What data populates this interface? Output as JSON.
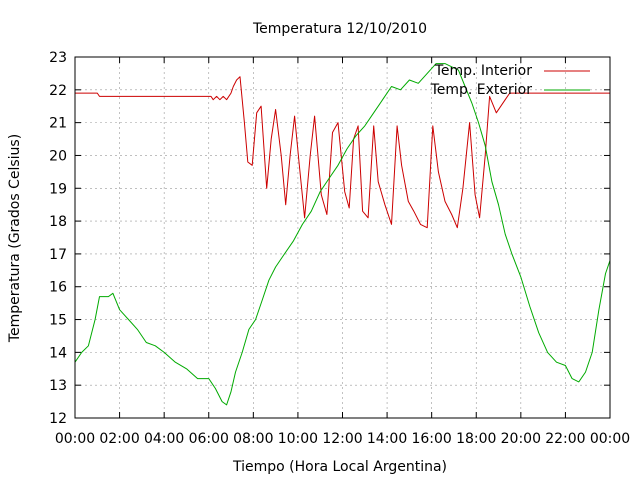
{
  "chart_data": {
    "type": "line",
    "title": "Temperatura 12/10/2010",
    "xlabel": "Tiempo (Hora Local Argentina)",
    "ylabel": "Temperatura (Grados Celsius)",
    "xlim": [
      0,
      24
    ],
    "ylim": [
      12,
      23
    ],
    "grid": true,
    "legend_position": "top-right",
    "x_ticks": [
      {
        "value": 0,
        "label": "00:00"
      },
      {
        "value": 2,
        "label": "02:00"
      },
      {
        "value": 4,
        "label": "04:00"
      },
      {
        "value": 6,
        "label": "06:00"
      },
      {
        "value": 8,
        "label": "08:00"
      },
      {
        "value": 10,
        "label": "10:00"
      },
      {
        "value": 12,
        "label": "12:00"
      },
      {
        "value": 14,
        "label": "14:00"
      },
      {
        "value": 16,
        "label": "16:00"
      },
      {
        "value": 18,
        "label": "18:00"
      },
      {
        "value": 20,
        "label": "20:00"
      },
      {
        "value": 22,
        "label": "22:00"
      },
      {
        "value": 24,
        "label": "00:00"
      }
    ],
    "y_ticks": [
      {
        "value": 12,
        "label": "12"
      },
      {
        "value": 13,
        "label": "13"
      },
      {
        "value": 14,
        "label": "14"
      },
      {
        "value": 15,
        "label": "15"
      },
      {
        "value": 16,
        "label": "16"
      },
      {
        "value": 17,
        "label": "17"
      },
      {
        "value": 18,
        "label": "18"
      },
      {
        "value": 19,
        "label": "19"
      },
      {
        "value": 20,
        "label": "20"
      },
      {
        "value": 21,
        "label": "21"
      },
      {
        "value": 22,
        "label": "22"
      },
      {
        "value": 23,
        "label": "23"
      }
    ],
    "series": [
      {
        "name": "Temp. Interior",
        "color": "#cc0000",
        "x": [
          0,
          0.5,
          1.0,
          1.1,
          2,
          3,
          4,
          5,
          6,
          6.1,
          6.2,
          6.35,
          6.5,
          6.65,
          6.8,
          7.0,
          7.1,
          7.25,
          7.4,
          7.6,
          7.75,
          7.95,
          8.15,
          8.35,
          8.6,
          8.8,
          9.0,
          9.25,
          9.45,
          9.65,
          9.85,
          10.05,
          10.3,
          10.55,
          10.75,
          11.05,
          11.3,
          11.55,
          11.8,
          12.1,
          12.3,
          12.5,
          12.7,
          12.9,
          13.15,
          13.4,
          13.6,
          13.9,
          14.2,
          14.45,
          14.65,
          14.95,
          15.2,
          15.5,
          15.8,
          16.05,
          16.3,
          16.6,
          16.9,
          17.15,
          17.4,
          17.7,
          17.95,
          18.15,
          18.4,
          18.6,
          18.9,
          19.1,
          19.3,
          19.5,
          19.75,
          20.0,
          21,
          22,
          23,
          24
        ],
        "values": [
          21.9,
          21.9,
          21.9,
          21.8,
          21.8,
          21.8,
          21.8,
          21.8,
          21.8,
          21.8,
          21.7,
          21.8,
          21.7,
          21.8,
          21.7,
          21.9,
          22.1,
          22.3,
          22.4,
          21.0,
          19.8,
          19.7,
          21.3,
          21.5,
          19.0,
          20.5,
          21.4,
          20.0,
          18.5,
          20.0,
          21.2,
          19.8,
          18.1,
          20.0,
          21.2,
          18.8,
          18.2,
          20.7,
          21.0,
          18.9,
          18.4,
          20.5,
          20.9,
          18.3,
          18.1,
          20.9,
          19.2,
          18.5,
          17.9,
          20.9,
          19.7,
          18.6,
          18.3,
          17.9,
          17.8,
          20.9,
          19.5,
          18.6,
          18.2,
          17.8,
          19.0,
          21.0,
          18.8,
          18.1,
          20.0,
          21.8,
          21.3,
          21.5,
          21.7,
          21.9,
          21.9,
          21.9,
          21.9,
          21.9,
          21.9,
          21.9
        ]
      },
      {
        "name": "Temp. Exterior",
        "color": "#00aa00",
        "x": [
          0,
          0.3,
          0.6,
          0.9,
          1.1,
          1.5,
          1.7,
          2.0,
          2.4,
          2.8,
          3.2,
          3.6,
          4.0,
          4.5,
          5.0,
          5.5,
          6.0,
          6.3,
          6.6,
          6.8,
          7.0,
          7.2,
          7.5,
          7.8,
          8.1,
          8.4,
          8.7,
          9.0,
          9.4,
          9.8,
          10.2,
          10.6,
          11.0,
          11.4,
          11.8,
          12.2,
          12.6,
          13.0,
          13.4,
          13.8,
          14.2,
          14.6,
          15.0,
          15.4,
          15.8,
          16.2,
          16.6,
          16.9,
          17.2,
          17.5,
          17.8,
          18.1,
          18.4,
          18.7,
          19.0,
          19.3,
          19.6,
          20.0,
          20.4,
          20.8,
          21.2,
          21.6,
          22.0,
          22.3,
          22.6,
          22.9,
          23.2,
          23.5,
          23.8,
          24.0
        ],
        "values": [
          13.7,
          14.0,
          14.2,
          15.0,
          15.7,
          15.7,
          15.8,
          15.3,
          15.0,
          14.7,
          14.3,
          14.2,
          14.0,
          13.7,
          13.5,
          13.2,
          13.2,
          12.9,
          12.5,
          12.4,
          12.8,
          13.4,
          14.0,
          14.7,
          15.0,
          15.6,
          16.2,
          16.6,
          17.0,
          17.4,
          17.9,
          18.3,
          18.9,
          19.3,
          19.7,
          20.2,
          20.6,
          20.9,
          21.3,
          21.7,
          22.1,
          22.0,
          22.3,
          22.2,
          22.5,
          22.8,
          22.8,
          22.7,
          22.6,
          22.1,
          21.6,
          21.0,
          20.3,
          19.2,
          18.5,
          17.6,
          17.0,
          16.3,
          15.4,
          14.6,
          14.0,
          13.7,
          13.6,
          13.2,
          13.1,
          13.4,
          14.0,
          15.3,
          16.4,
          16.8
        ]
      }
    ]
  }
}
